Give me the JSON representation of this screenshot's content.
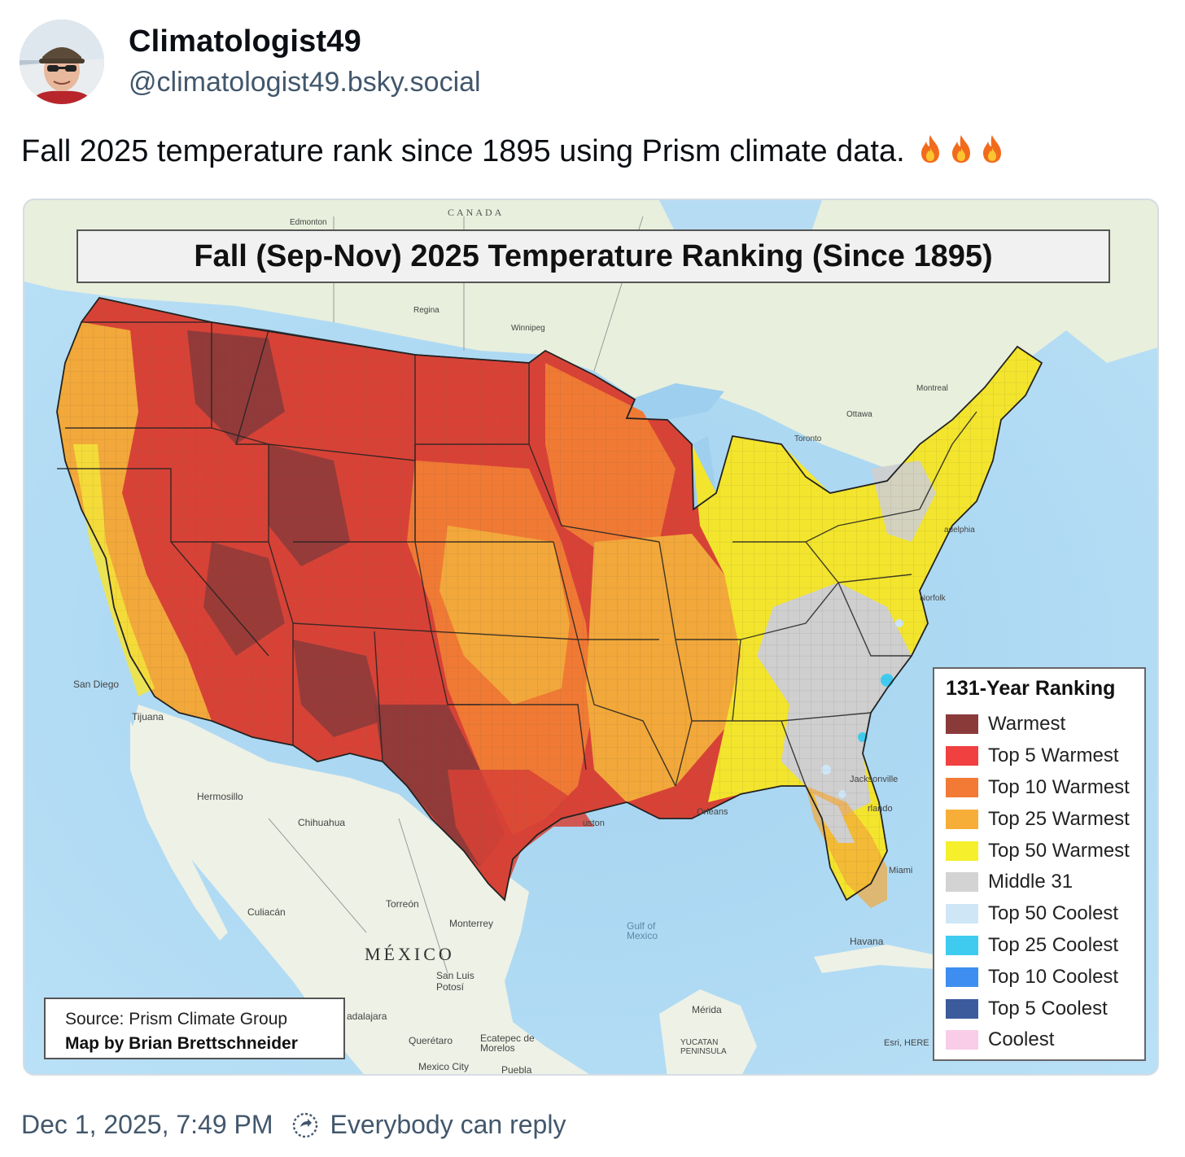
{
  "author": {
    "display_name": "Climatologist49",
    "handle": "@climatologist49.bsky.social"
  },
  "post": {
    "text": "Fall 2025 temperature rank since 1895 using Prism climate data.",
    "emoji_icons": [
      "fire-icon",
      "fire-icon",
      "fire-icon"
    ],
    "timestamp": "Dec 1, 2025, 7:49 PM",
    "reply_setting": "Everybody can reply",
    "reply_icon": "reply-settings-icon"
  },
  "map": {
    "title": "Fall (Sep-Nov) 2025 Temperature Ranking (Since 1895)",
    "legend": {
      "title": "131-Year Ranking",
      "items": [
        {
          "label": "Warmest",
          "color": "#8b3a3a"
        },
        {
          "label": "Top 5 Warmest",
          "color": "#f04040"
        },
        {
          "label": "Top 10 Warmest",
          "color": "#f27a35"
        },
        {
          "label": "Top 25 Warmest",
          "color": "#f7ae38"
        },
        {
          "label": "Top 50 Warmest",
          "color": "#f5ef2c"
        },
        {
          "label": "Middle 31",
          "color": "#d3d3d3"
        },
        {
          "label": "Top 50 Coolest",
          "color": "#cfe6f7"
        },
        {
          "label": "Top 25 Coolest",
          "color": "#3fcbef"
        },
        {
          "label": "Top 10 Coolest",
          "color": "#3d8ef0"
        },
        {
          "label": "Top 5 Coolest",
          "color": "#3b5b9c"
        },
        {
          "label": "Coolest",
          "color": "#f9cde8"
        }
      ]
    },
    "source": "Source: Prism Climate Group",
    "credit": "Map by Brian Brettschneider",
    "place_labels": {
      "canada": "CANADA",
      "mexico": "MÉXICO",
      "gulf": "Gulf of Mexico",
      "san_diego": "San Diego",
      "tijuana": "Tijuana",
      "hermosillo": "Hermosillo",
      "chihuahua": "Chihuahua",
      "culiacan": "Culiacán",
      "torreon": "Torreón",
      "monterrey": "Monterrey",
      "san_luis_potosi": "San Luis Potosí",
      "queretaro": "Querétaro",
      "guadalajara": "adalajara",
      "ecatepec": "Ecatepec de Morelos",
      "mexico_city": "Mexico City",
      "puebla": "Puebla",
      "havana": "Havana",
      "merida": "Mérida",
      "yucatan": "YUCATAN PENINSULA",
      "miami": "Miami",
      "orlando": "rlando",
      "jacksonville": "Jacksonville",
      "new_orleans": "Orleans",
      "houston": "uston",
      "norfolk": "Norfolk",
      "philadelphia": "adelphia",
      "toronto": "Toronto",
      "ottawa": "Ottawa",
      "montreal": "Montreal",
      "regina": "Regina",
      "winnipeg": "Winnipeg",
      "edmonton": "Edmonton",
      "esri": "Esri, HERE"
    }
  }
}
